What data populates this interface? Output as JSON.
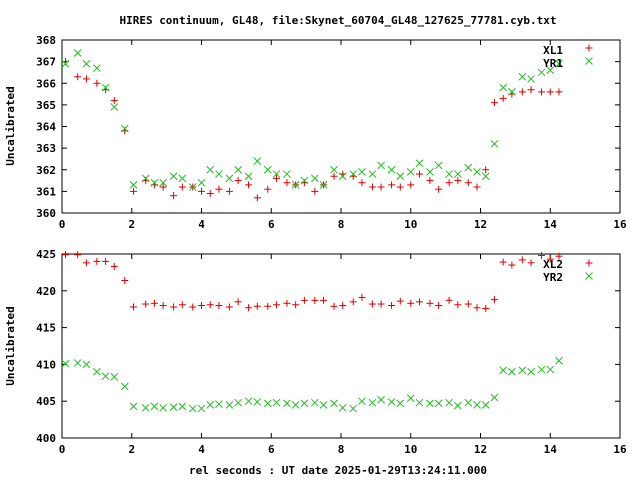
{
  "title": "HIRES continuum, GL48, file:Skynet_60704_GL48_127625_77781.cyb.txt",
  "colors": {
    "red": "#dd0000",
    "green": "#22bb22",
    "axis": "#000000"
  },
  "chart_data": [
    {
      "type": "scatter",
      "title": "HIRES continuum, GL48, file:Skynet_60704_GL48_127625_77781.cyb.txt",
      "xlabel": "",
      "ylabel": "Uncalibrated",
      "xlim": [
        0,
        16
      ],
      "ylim": [
        360,
        368
      ],
      "x_ticks": [
        0,
        2,
        4,
        6,
        8,
        10,
        12,
        14,
        16
      ],
      "y_ticks": [
        360,
        361,
        362,
        363,
        364,
        365,
        366,
        367,
        368
      ],
      "legend_position": "top-right",
      "series": [
        {
          "name": "XL1",
          "marker": "plus",
          "color": "#dd0000",
          "x": [
            0.1,
            0.45,
            0.7,
            1.0,
            1.25,
            1.5,
            1.8,
            2.05,
            2.4,
            2.65,
            2.9,
            3.2,
            3.45,
            3.75,
            4.0,
            4.25,
            4.5,
            4.8,
            5.05,
            5.35,
            5.6,
            5.9,
            6.15,
            6.45,
            6.7,
            6.95,
            7.25,
            7.5,
            7.8,
            8.05,
            8.35,
            8.6,
            8.9,
            9.15,
            9.45,
            9.7,
            10.0,
            10.25,
            10.55,
            10.8,
            11.1,
            11.35,
            11.65,
            11.9,
            12.15,
            12.4,
            12.65,
            12.9,
            13.2,
            13.45,
            13.75,
            14.0,
            14.25
          ],
          "y": [
            367.0,
            366.3,
            366.2,
            366.0,
            365.7,
            365.2,
            363.8,
            361.0,
            361.5,
            361.3,
            361.2,
            360.8,
            361.2,
            361.2,
            361.0,
            360.9,
            361.1,
            361.0,
            361.5,
            361.3,
            360.7,
            361.1,
            361.6,
            361.4,
            361.3,
            361.4,
            361.0,
            361.3,
            361.7,
            361.8,
            361.7,
            361.4,
            361.2,
            361.2,
            361.3,
            361.2,
            361.3,
            361.8,
            361.5,
            361.1,
            361.4,
            361.5,
            361.4,
            361.2,
            362.0,
            365.1,
            365.3,
            365.5,
            365.6,
            365.7,
            365.6,
            365.6,
            365.6
          ]
        },
        {
          "name": "YR1",
          "marker": "cross",
          "color": "#22bb22",
          "x": [
            0.1,
            0.45,
            0.7,
            1.0,
            1.25,
            1.5,
            1.8,
            2.05,
            2.4,
            2.65,
            2.9,
            3.2,
            3.45,
            3.75,
            4.0,
            4.25,
            4.5,
            4.8,
            5.05,
            5.35,
            5.6,
            5.9,
            6.15,
            6.45,
            6.7,
            6.95,
            7.25,
            7.5,
            7.8,
            8.05,
            8.35,
            8.6,
            8.9,
            9.15,
            9.45,
            9.7,
            10.0,
            10.25,
            10.55,
            10.8,
            11.1,
            11.35,
            11.65,
            11.9,
            12.15,
            12.4,
            12.65,
            12.9,
            13.2,
            13.45,
            13.75,
            14.0,
            14.25
          ],
          "y": [
            366.9,
            367.4,
            366.9,
            366.7,
            365.8,
            364.9,
            363.9,
            361.3,
            361.6,
            361.4,
            361.4,
            361.7,
            361.6,
            361.2,
            361.4,
            362.0,
            361.8,
            361.6,
            362.0,
            361.7,
            362.4,
            362.0,
            361.8,
            361.8,
            361.3,
            361.5,
            361.6,
            361.3,
            362.0,
            361.7,
            361.8,
            361.9,
            361.8,
            362.2,
            362.0,
            361.7,
            361.9,
            362.3,
            361.9,
            362.2,
            361.8,
            361.8,
            362.1,
            361.9,
            361.7,
            363.2,
            365.8,
            365.6,
            366.3,
            366.2,
            366.5,
            366.6,
            366.9
          ]
        }
      ]
    },
    {
      "type": "scatter",
      "xlabel": "rel seconds : UT date 2025-01-29T13:24:11.000",
      "ylabel": "Uncalibrated",
      "xlim": [
        0,
        16
      ],
      "ylim": [
        400,
        425
      ],
      "x_ticks": [
        0,
        2,
        4,
        6,
        8,
        10,
        12,
        14,
        16
      ],
      "y_ticks": [
        400,
        405,
        410,
        415,
        420,
        425
      ],
      "legend_position": "top-right",
      "series": [
        {
          "name": "XL2",
          "marker": "plus",
          "color": "#dd0000",
          "x": [
            0.1,
            0.45,
            0.7,
            1.0,
            1.25,
            1.5,
            1.8,
            2.05,
            2.4,
            2.65,
            2.9,
            3.2,
            3.45,
            3.75,
            4.0,
            4.25,
            4.5,
            4.8,
            5.05,
            5.35,
            5.6,
            5.9,
            6.15,
            6.45,
            6.7,
            6.95,
            7.25,
            7.5,
            7.8,
            8.05,
            8.35,
            8.6,
            8.9,
            9.15,
            9.45,
            9.7,
            10.0,
            10.25,
            10.55,
            10.8,
            11.1,
            11.35,
            11.65,
            11.9,
            12.15,
            12.4,
            12.65,
            12.9,
            13.2,
            13.45,
            13.75,
            14.0,
            14.25
          ],
          "y": [
            424.9,
            424.9,
            423.8,
            424.0,
            424.0,
            423.3,
            421.4,
            417.8,
            418.2,
            418.3,
            418.0,
            417.8,
            418.1,
            417.8,
            418.0,
            418.1,
            418.0,
            417.8,
            418.5,
            417.7,
            417.9,
            417.9,
            418.1,
            418.3,
            418.1,
            418.7,
            418.7,
            418.7,
            417.9,
            418.0,
            418.5,
            419.1,
            418.2,
            418.2,
            418.0,
            418.6,
            418.3,
            418.5,
            418.3,
            418.0,
            418.7,
            418.1,
            418.2,
            417.7,
            417.6,
            418.8,
            423.9,
            423.5,
            424.2,
            423.8,
            424.8,
            424.3,
            424.7
          ]
        },
        {
          "name": "YR2",
          "marker": "cross",
          "color": "#22bb22",
          "x": [
            0.1,
            0.45,
            0.7,
            1.0,
            1.25,
            1.5,
            1.8,
            2.05,
            2.4,
            2.65,
            2.9,
            3.2,
            3.45,
            3.75,
            4.0,
            4.25,
            4.5,
            4.8,
            5.05,
            5.35,
            5.6,
            5.9,
            6.15,
            6.45,
            6.7,
            6.95,
            7.25,
            7.5,
            7.8,
            8.05,
            8.35,
            8.6,
            8.9,
            9.15,
            9.45,
            9.7,
            10.0,
            10.25,
            10.55,
            10.8,
            11.1,
            11.35,
            11.65,
            11.9,
            12.15,
            12.4,
            12.65,
            12.9,
            13.2,
            13.45,
            13.75,
            14.0,
            14.25
          ],
          "y": [
            410.1,
            410.2,
            410.0,
            409.0,
            408.4,
            408.3,
            407.0,
            404.3,
            404.1,
            404.3,
            404.1,
            404.2,
            404.3,
            404.0,
            404.0,
            404.5,
            404.6,
            404.5,
            404.8,
            405.0,
            404.9,
            404.7,
            404.8,
            404.7,
            404.5,
            404.7,
            404.8,
            404.5,
            404.7,
            404.1,
            404.0,
            405.0,
            404.8,
            405.2,
            404.9,
            404.7,
            405.4,
            404.8,
            404.7,
            404.7,
            404.8,
            404.4,
            404.8,
            404.5,
            404.5,
            405.5,
            409.2,
            409.0,
            409.2,
            409.0,
            409.3,
            409.3,
            410.5
          ]
        }
      ]
    }
  ]
}
